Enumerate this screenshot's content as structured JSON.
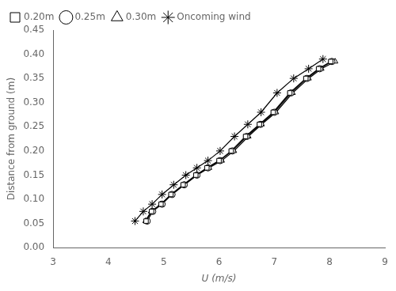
{
  "chart_data": {
    "type": "line",
    "xlabel": "U (m/s)",
    "ylabel": "Distance from ground (m)",
    "xlim": [
      3,
      9
    ],
    "ylim": [
      0.0,
      0.45
    ],
    "xticks": [
      3,
      4,
      5,
      6,
      7,
      8,
      9
    ],
    "yticks": [
      {
        "value": 0.0,
        "label": "0.00"
      },
      0.05,
      {
        "value": 0.1,
        "label": "0.10"
      },
      0.15,
      {
        "value": 0.2,
        "label": "0.20"
      },
      0.25,
      {
        "value": 0.3,
        "label": "0.30"
      },
      0.35,
      {
        "value": 0.4,
        "label": "0.40"
      },
      0.45
    ],
    "grid": false,
    "legend": "upper left",
    "series": [
      {
        "name": "0.20m",
        "marker": "square",
        "color": "black",
        "x": [
          4.68,
          4.78,
          4.95,
          5.13,
          5.35,
          5.58,
          5.78,
          6.0,
          6.22,
          6.48,
          6.73,
          6.98,
          7.28,
          7.57,
          7.8,
          8.02
        ],
        "values": [
          0.055,
          0.075,
          0.09,
          0.11,
          0.13,
          0.15,
          0.165,
          0.18,
          0.2,
          0.23,
          0.255,
          0.28,
          0.32,
          0.35,
          0.37,
          0.385
        ]
      },
      {
        "name": "0.25m",
        "marker": "circle",
        "color": "black",
        "x": [
          4.7,
          4.8,
          4.97,
          5.15,
          5.37,
          5.6,
          5.8,
          6.02,
          6.24,
          6.5,
          6.75,
          7.0,
          7.3,
          7.59,
          7.82,
          8.04
        ],
        "values": [
          0.055,
          0.075,
          0.09,
          0.11,
          0.13,
          0.15,
          0.165,
          0.18,
          0.2,
          0.23,
          0.255,
          0.28,
          0.32,
          0.35,
          0.37,
          0.385
        ]
      },
      {
        "name": "0.30m",
        "marker": "triangle",
        "color": "black",
        "x": [
          4.67,
          4.77,
          4.95,
          5.14,
          5.37,
          5.6,
          5.82,
          6.05,
          6.27,
          6.53,
          6.77,
          7.03,
          7.33,
          7.62,
          7.85,
          8.1
        ],
        "values": [
          0.055,
          0.075,
          0.09,
          0.11,
          0.13,
          0.15,
          0.165,
          0.18,
          0.2,
          0.23,
          0.255,
          0.28,
          0.32,
          0.35,
          0.37,
          0.385
        ]
      },
      {
        "name": "Oncoming wind",
        "marker": "star",
        "color": "black",
        "x": [
          4.48,
          4.63,
          4.79,
          4.97,
          5.18,
          5.4,
          5.6,
          5.8,
          6.02,
          6.28,
          6.52,
          6.76,
          7.05,
          7.35,
          7.62,
          7.88
        ],
        "values": [
          0.055,
          0.075,
          0.09,
          0.11,
          0.13,
          0.15,
          0.165,
          0.18,
          0.2,
          0.23,
          0.255,
          0.28,
          0.32,
          0.35,
          0.37,
          0.39
        ]
      }
    ]
  }
}
